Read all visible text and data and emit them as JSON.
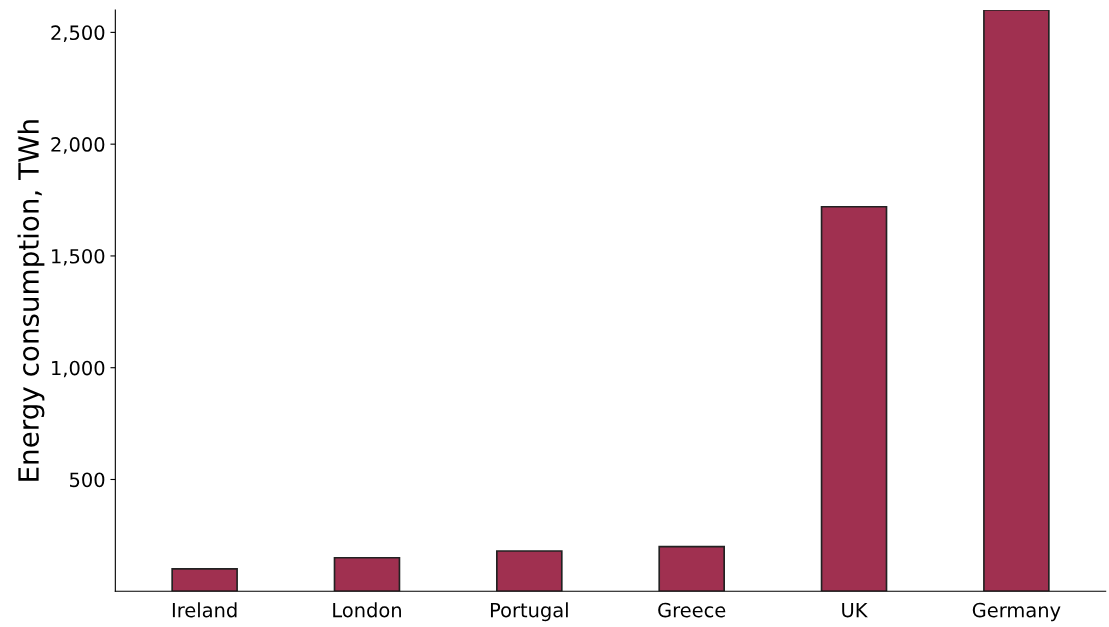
{
  "chart_data": {
    "type": "bar",
    "ylabel": "Energy consumption, TWh",
    "categories": [
      "Ireland",
      "London",
      "Portugal",
      "Greece",
      "UK",
      "Germany"
    ],
    "values": [
      100,
      150,
      180,
      200,
      1720,
      2600
    ],
    "color": "#a03050",
    "ylim": [
      0,
      2600
    ],
    "yticks": [
      500,
      {
        "value": 1000,
        "label": "1,000"
      },
      {
        "value": 1500,
        "label": "1,500"
      },
      {
        "value": 2000,
        "label": "2,000"
      },
      {
        "value": 2500,
        "label": "2,500"
      }
    ],
    "grid": false
  }
}
